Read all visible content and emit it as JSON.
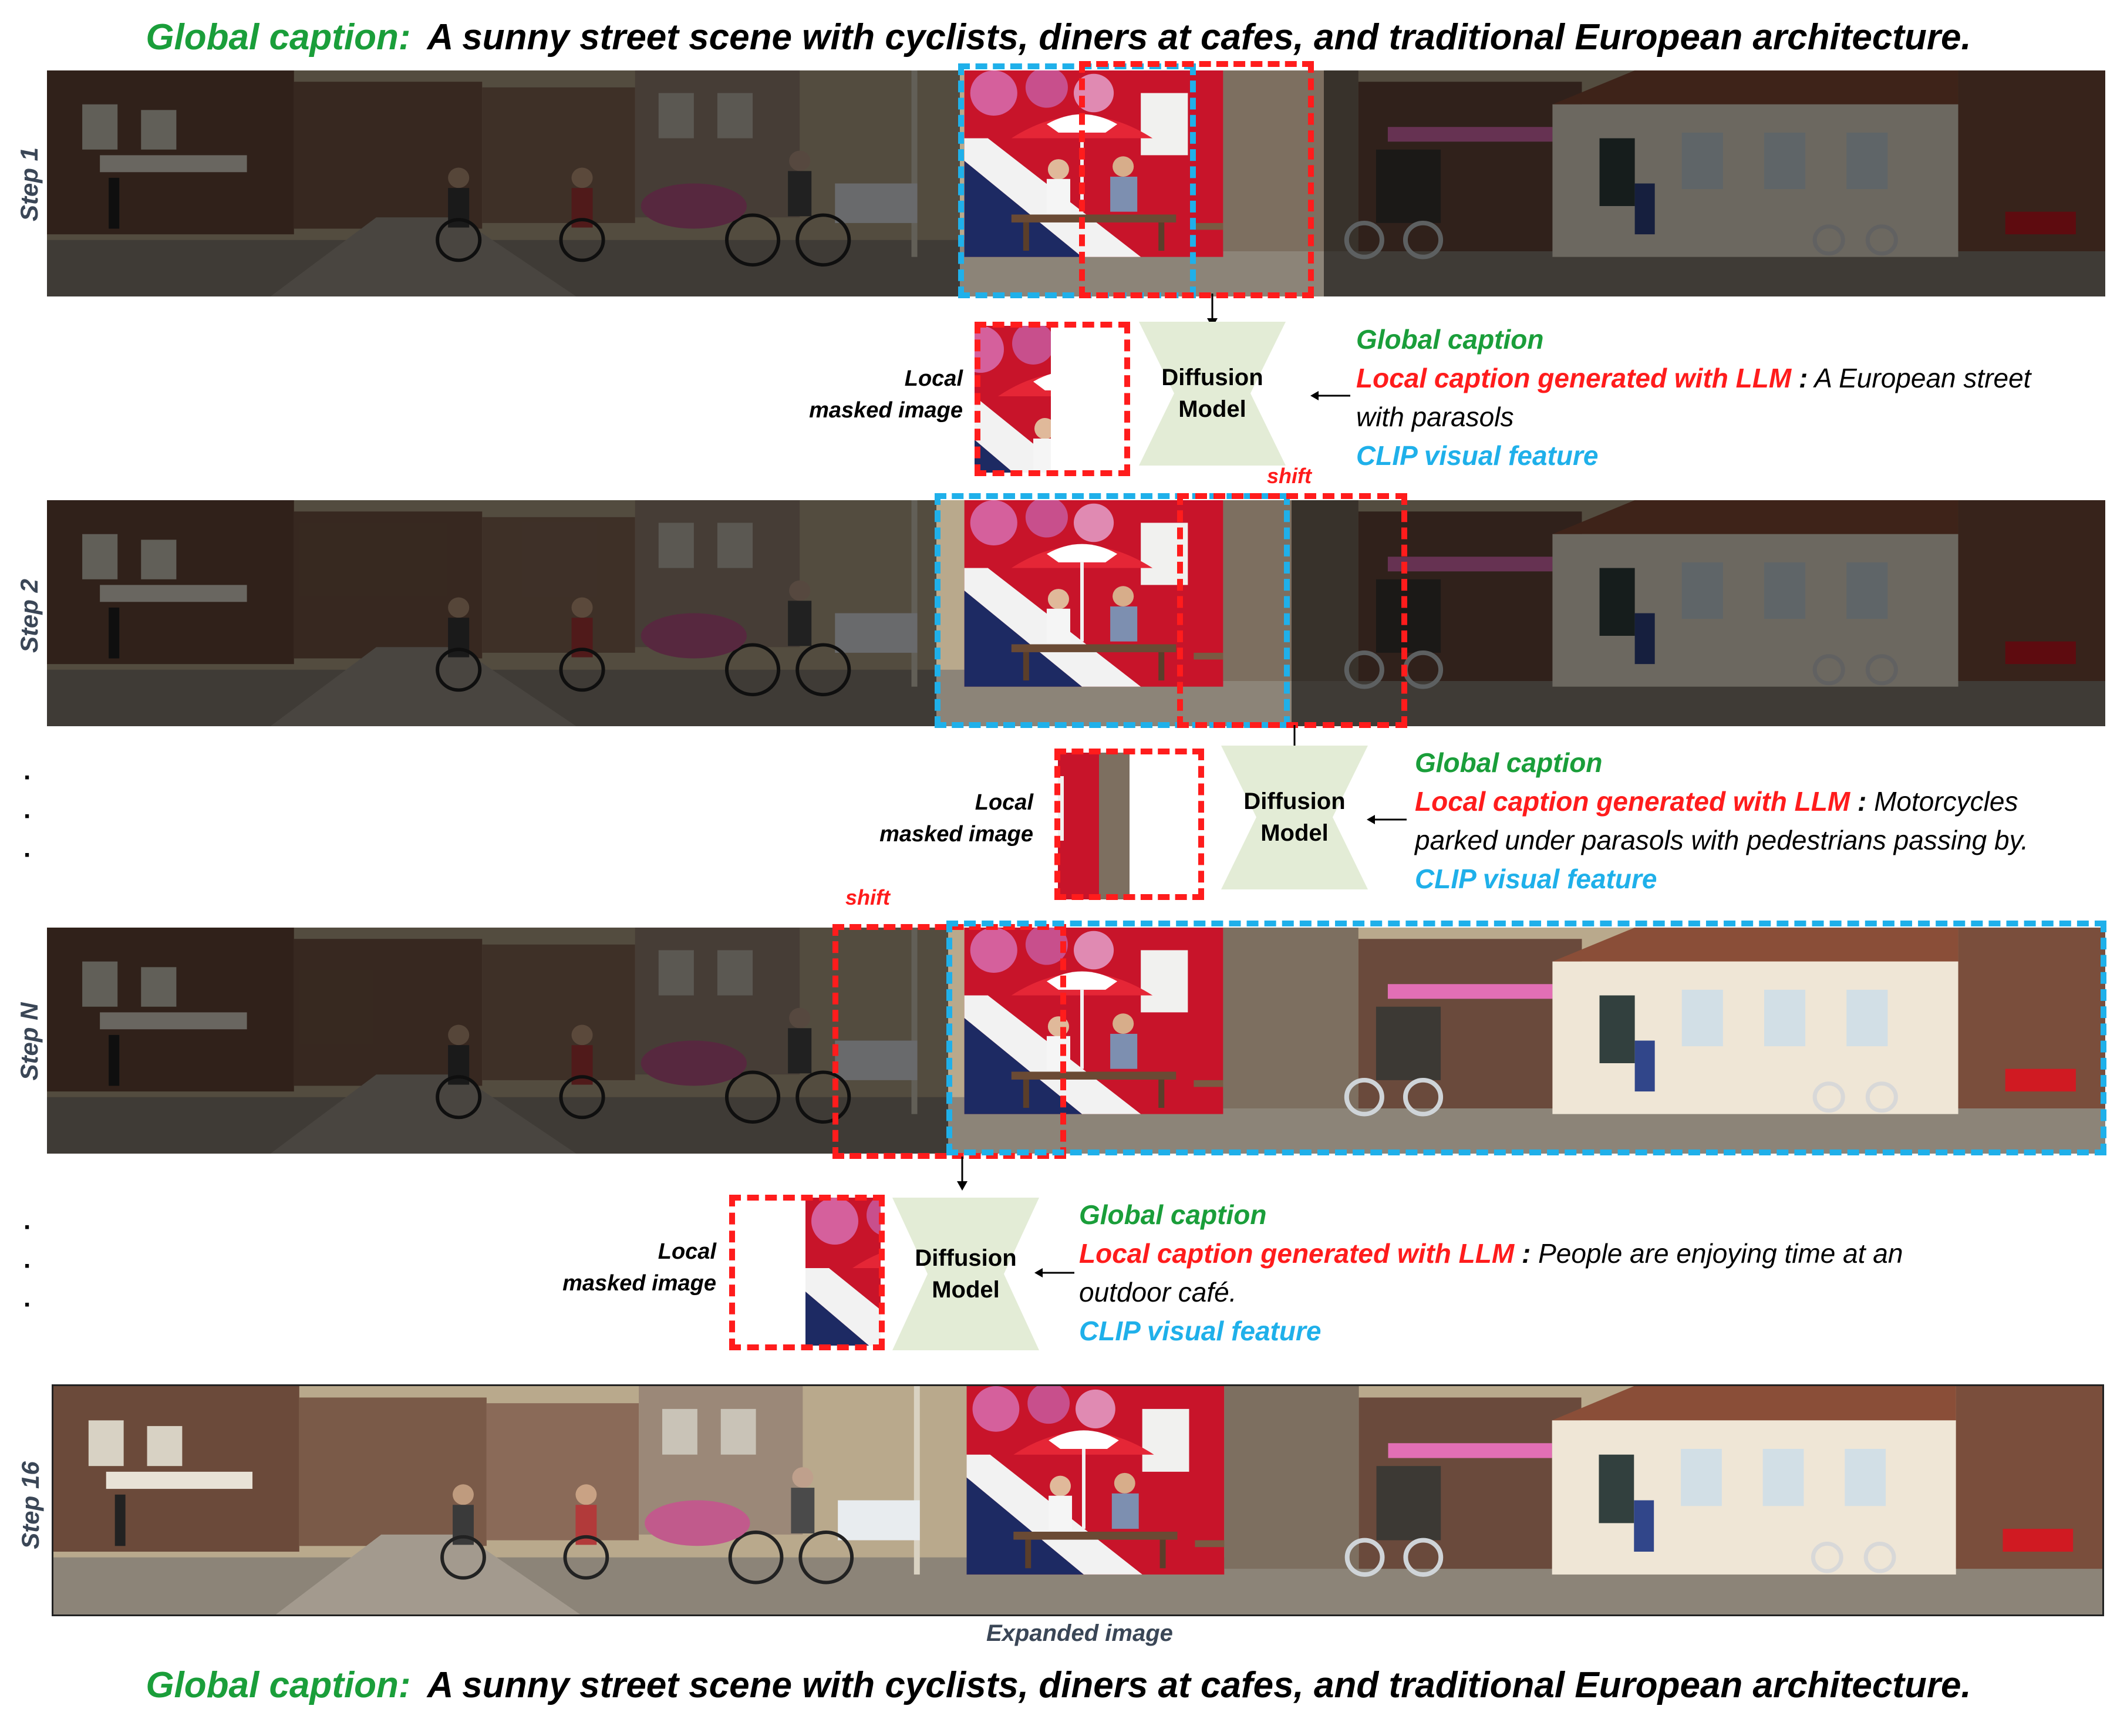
{
  "header": {
    "label": "Global caption:",
    "text": "A sunny street scene with cyclists, diners at cafes, and traditional European architecture."
  },
  "footer": {
    "label": "Global caption:",
    "text": "A sunny street scene with cyclists, diners at cafes, and traditional European architecture."
  },
  "steps": [
    {
      "label": "Step 1"
    },
    {
      "label": "Step 2"
    },
    {
      "label": "Step N"
    },
    {
      "label": "Step 16"
    }
  ],
  "shift_label": "shift",
  "diffusion": {
    "line1": "Diffusion",
    "line2": "Model"
  },
  "local_label": {
    "line1": "Local",
    "line2": "masked image"
  },
  "conditions": [
    {
      "global": "Global caption",
      "local_prefix": "Local caption generated with LLM",
      "colon": ":",
      "local_text": "A European street with parasols",
      "clip": "CLIP visual feature"
    },
    {
      "global": "Global caption",
      "local_prefix": "Local caption generated with LLM",
      "colon": ":",
      "local_text": "Motorcycles parked under parasols with pedestrians passing by.",
      "clip": "CLIP visual feature"
    },
    {
      "global": "Global caption",
      "local_prefix": "Local caption generated with LLM",
      "colon": ":",
      "local_text": "People are enjoying time at an outdoor café.",
      "clip": "CLIP visual feature"
    }
  ],
  "dots": "·",
  "expanded_label": "Expanded image",
  "colors": {
    "global_green": "#1a9e3a",
    "local_red": "#ff1c1c",
    "clip_blue": "#1fb0ea",
    "diffusion_fill": "#e3ecd6"
  }
}
